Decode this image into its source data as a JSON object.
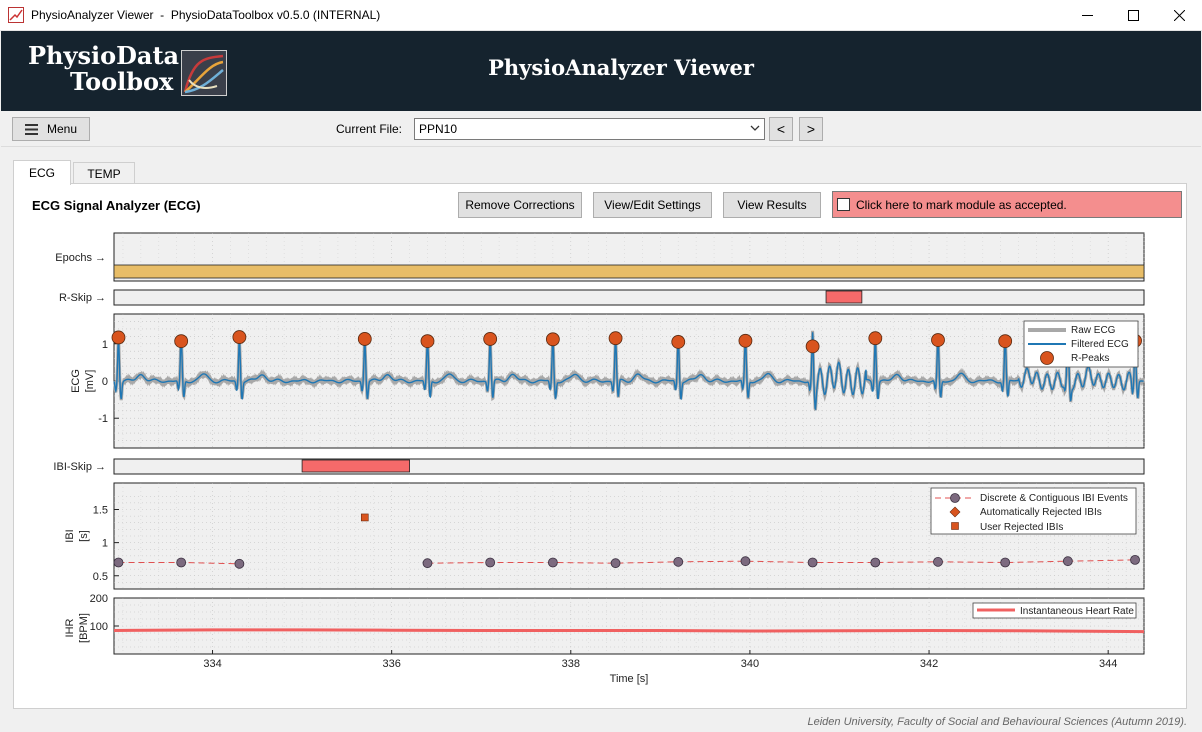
{
  "window": {
    "title": "PhysioAnalyzer Viewer  -  PhysioDataToolbox v0.5.0 (INTERNAL)"
  },
  "banner": {
    "logo_line1": "PhysioData",
    "logo_line2": "Toolbox",
    "title": "PhysioAnalyzer Viewer"
  },
  "toolbar": {
    "menu_label": "Menu",
    "current_file_label": "Current File:",
    "current_file_value": "PPN10",
    "prev_label": "<",
    "next_label": ">"
  },
  "tabs": [
    {
      "label": "ECG",
      "active": true
    },
    {
      "label": "TEMP",
      "active": false
    }
  ],
  "panel": {
    "title": "ECG Signal Analyzer (ECG)",
    "remove_corrections": "Remove Corrections",
    "view_edit_settings": "View/Edit Settings",
    "view_results": "View Results",
    "accept_label": "Click here to mark module as accepted.",
    "accept_color": "#f48e8e"
  },
  "labels": {
    "epochs": "Epochs →",
    "rskip": "R-Skip →",
    "ibiskip": "IBI-Skip →",
    "ecg_ylabel1": "ECG",
    "ecg_ylabel2": "[mV]",
    "ibi_ylabel1": "IBI",
    "ibi_ylabel2": "[s]",
    "ihr_ylabel1": "IHR",
    "ihr_ylabel2": "[BPM]",
    "xlabel": "Time [s]"
  },
  "legends": {
    "ecg": [
      "Raw ECG",
      "Filtered ECG",
      "R-Peaks"
    ],
    "ibi": [
      "Discrete & Contiguous IBI Events",
      "Automatically Rejected IBIs",
      "User Rejected IBIs"
    ],
    "ihr": [
      "Instantaneous Heart Rate"
    ]
  },
  "footer": "Leiden University, Faculty of Social and Behavioural Sciences (Autumn 2019).",
  "colors": {
    "banner": "#15232e",
    "epoch_band": "#e8bd67",
    "skip_marker": "#f56a6a",
    "ecg_line": "#1f77b4",
    "raw_ecg": "#a8a8a8",
    "r_peak": "#d9541e",
    "ibi_point": "#7c6a7f",
    "ihr_line": "#f06060"
  },
  "chart_data": [
    {
      "type": "line",
      "name": "ecg",
      "xlim": [
        332.9,
        344.4
      ],
      "ylim": [
        -1.8,
        1.8
      ],
      "yticks": [
        -1,
        0,
        1
      ],
      "r_peaks": [
        [
          332.95,
          1.17
        ],
        [
          333.65,
          1.07
        ],
        [
          334.3,
          1.18
        ],
        [
          335.7,
          1.13
        ],
        [
          336.4,
          1.07
        ],
        [
          337.1,
          1.13
        ],
        [
          337.8,
          1.12
        ],
        [
          338.5,
          1.15
        ],
        [
          339.2,
          1.05
        ],
        [
          339.95,
          1.08
        ],
        [
          340.7,
          0.93
        ],
        [
          341.4,
          1.15
        ],
        [
          342.1,
          1.1
        ],
        [
          342.85,
          1.07
        ],
        [
          343.55,
          1.05
        ],
        [
          344.3,
          1.08
        ]
      ],
      "series": [
        {
          "name": "Raw ECG",
          "values": []
        },
        {
          "name": "Filtered ECG",
          "values": []
        }
      ]
    },
    {
      "type": "scatter",
      "name": "ibi",
      "xlim": [
        332.9,
        344.4
      ],
      "ylim": [
        0.3,
        1.9
      ],
      "yticks": [
        0.5,
        1,
        1.5
      ],
      "ibi_events": [
        [
          332.95,
          0.7
        ],
        [
          333.65,
          0.7
        ],
        [
          334.3,
          0.68
        ],
        [
          336.4,
          0.69
        ],
        [
          337.1,
          0.7
        ],
        [
          337.8,
          0.7
        ],
        [
          338.5,
          0.69
        ],
        [
          339.2,
          0.71
        ],
        [
          339.95,
          0.72
        ],
        [
          340.7,
          0.7
        ],
        [
          341.4,
          0.7
        ],
        [
          342.1,
          0.71
        ],
        [
          342.85,
          0.7
        ],
        [
          343.55,
          0.72
        ],
        [
          344.3,
          0.74
        ]
      ],
      "user_rejected": [
        [
          335.7,
          1.38
        ]
      ],
      "auto_rejected": []
    },
    {
      "type": "line",
      "name": "ihr",
      "xlim": [
        332.9,
        344.4
      ],
      "ylim": [
        0,
        200
      ],
      "yticks": [
        0,
        100,
        200
      ],
      "x": [
        332.9,
        334,
        335,
        336,
        337,
        338,
        339,
        340,
        341,
        342,
        343,
        344.4
      ],
      "values": [
        84,
        86,
        86,
        85,
        84,
        84,
        84,
        82,
        83,
        84,
        83,
        80
      ]
    }
  ],
  "x_axis": {
    "ticks": [
      334,
      336,
      338,
      340,
      342,
      344
    ]
  },
  "epochs": {
    "start": 332.9,
    "end": 344.4
  },
  "r_skip": {
    "start": 340.85,
    "end": 341.25
  },
  "ibi_skip": {
    "start": 335,
    "end": 336.2
  }
}
